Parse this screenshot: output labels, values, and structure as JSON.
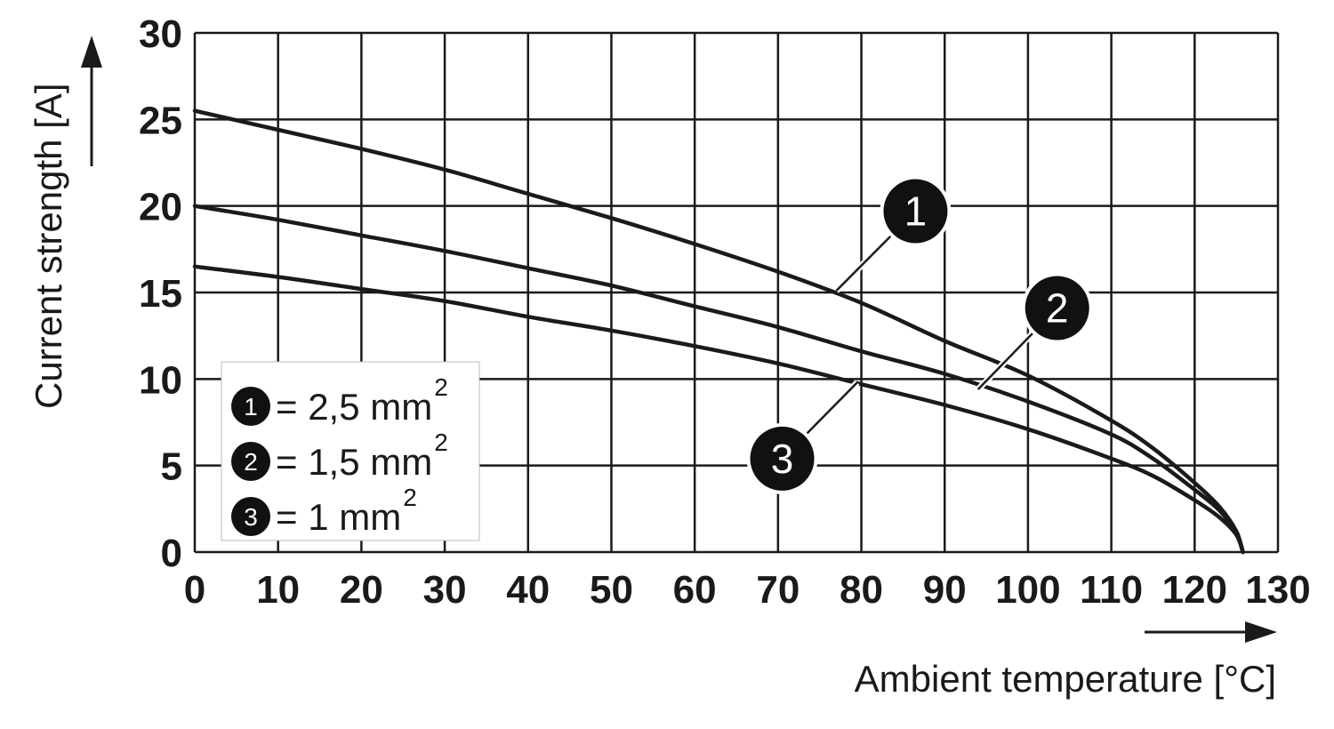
{
  "chart_data": {
    "type": "line",
    "xlabel": "Ambient temperature [°C]",
    "ylabel": "Current strength [A]",
    "xlim": [
      0,
      130
    ],
    "ylim": [
      0,
      30
    ],
    "x_ticks": [
      "0",
      "10",
      "20",
      "30",
      "40",
      "50",
      "60",
      "70",
      "80",
      "90",
      "100",
      "110",
      "120",
      "130"
    ],
    "y_ticks": [
      "0",
      "5",
      "10",
      "15",
      "20",
      "25",
      "30"
    ],
    "grid": true,
    "legend_position": "bottom-left",
    "series": [
      {
        "marker": "1",
        "legend_label": "= 2,5 mm",
        "legend_sup": "2",
        "x": [
          0,
          10,
          20,
          30,
          40,
          50,
          60,
          70,
          80,
          90,
          100,
          110,
          115,
          120,
          123,
          125,
          125.8
        ],
        "y": [
          25.5,
          24.4,
          23.3,
          22.1,
          20.7,
          19.3,
          17.8,
          16.2,
          14.4,
          12.2,
          10.2,
          7.6,
          6.0,
          4.0,
          2.6,
          1.2,
          0
        ]
      },
      {
        "marker": "2",
        "legend_label": "= 1,5 mm",
        "legend_sup": "2",
        "x": [
          0,
          10,
          20,
          30,
          40,
          50,
          60,
          70,
          80,
          90,
          100,
          110,
          115,
          120,
          123,
          125,
          125.8
        ],
        "y": [
          20.0,
          19.2,
          18.3,
          17.4,
          16.4,
          15.4,
          14.2,
          13.0,
          11.6,
          10.3,
          8.7,
          6.8,
          5.4,
          3.6,
          2.4,
          1.1,
          0
        ]
      },
      {
        "marker": "3",
        "legend_label": "= 1 mm",
        "legend_sup": "2",
        "x": [
          0,
          10,
          20,
          30,
          40,
          50,
          60,
          70,
          80,
          90,
          100,
          110,
          115,
          120,
          123,
          125,
          125.8
        ],
        "y": [
          16.5,
          15.9,
          15.2,
          14.5,
          13.6,
          12.8,
          11.9,
          10.9,
          9.7,
          8.5,
          7.1,
          5.4,
          4.4,
          3.0,
          2.0,
          1.0,
          0
        ]
      }
    ],
    "callouts": [
      {
        "marker": "1",
        "from": [
          77,
          15.1
        ],
        "to": [
          86.5,
          19.7
        ]
      },
      {
        "marker": "2",
        "from": [
          94,
          9.4
        ],
        "to": [
          103.5,
          14.1
        ]
      },
      {
        "marker": "3",
        "from": [
          79.5,
          9.8
        ],
        "to": [
          70.5,
          5.4
        ]
      }
    ],
    "colors": {
      "line": "#1a1a1a",
      "grid": "#1a1a1a",
      "marker_fill": "#111111",
      "legend_bg": "#ffffff",
      "background": "#ffffff"
    }
  }
}
